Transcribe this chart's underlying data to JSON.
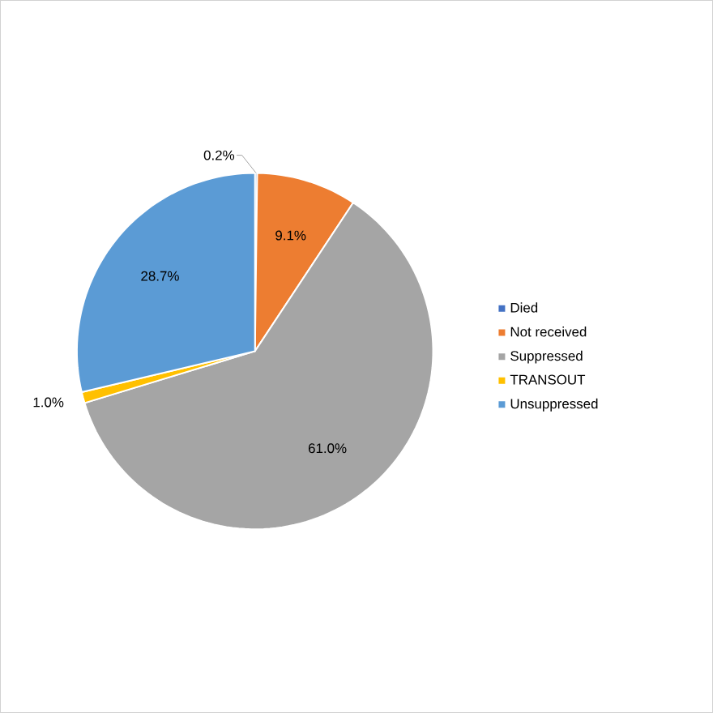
{
  "chart_data": {
    "type": "pie",
    "categories": [
      "Died",
      "Not received",
      "Suppressed",
      "TRANSOUT",
      "Unsuppressed"
    ],
    "values": [
      0.2,
      9.1,
      61.0,
      1.0,
      28.7
    ],
    "colors": [
      "#4472c4",
      "#ed7d31",
      "#a5a5a5",
      "#ffc000",
      "#5b9bd5"
    ],
    "value_labels": [
      "0.2%",
      "9.1%",
      "61.0%",
      "1.0%",
      "28.7%"
    ],
    "legend": "right"
  }
}
